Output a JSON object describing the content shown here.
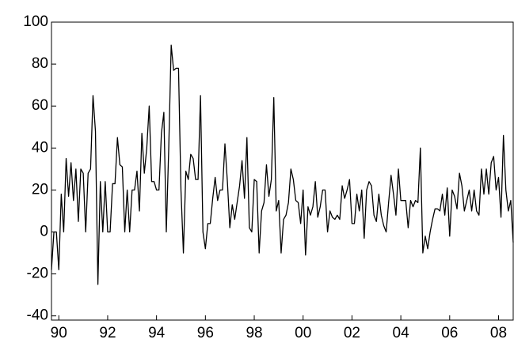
{
  "chart_data": {
    "type": "line",
    "x": [
      1989.7,
      1989.8,
      1989.9,
      1990.0,
      1990.1,
      1990.2,
      1990.3,
      1990.4,
      1990.5,
      1990.6,
      1990.7,
      1990.8,
      1990.9,
      1991.0,
      1991.1,
      1991.2,
      1991.3,
      1991.4,
      1991.5,
      1991.6,
      1991.7,
      1991.8,
      1991.9,
      1992.0,
      1992.1,
      1992.2,
      1992.3,
      1992.4,
      1992.5,
      1992.6,
      1992.7,
      1992.8,
      1992.9,
      1993.0,
      1993.1,
      1993.2,
      1993.3,
      1993.4,
      1993.5,
      1993.6,
      1993.7,
      1993.8,
      1993.9,
      1994.0,
      1994.1,
      1994.2,
      1994.3,
      1994.4,
      1994.5,
      1994.6,
      1994.7,
      1994.8,
      1994.9,
      1995.0,
      1995.1,
      1995.2,
      1995.3,
      1995.4,
      1995.5,
      1995.6,
      1995.7,
      1995.8,
      1995.9,
      1996.0,
      1996.1,
      1996.2,
      1996.3,
      1996.4,
      1996.5,
      1996.6,
      1996.7,
      1996.8,
      1996.9,
      1997.0,
      1997.1,
      1997.2,
      1997.3,
      1997.4,
      1997.5,
      1997.6,
      1997.7,
      1997.8,
      1997.9,
      1998.0,
      1998.1,
      1998.2,
      1998.3,
      1998.4,
      1998.5,
      1998.6,
      1998.7,
      1998.8,
      1998.9,
      1999.0,
      1999.1,
      1999.2,
      1999.3,
      1999.4,
      1999.5,
      1999.6,
      1999.7,
      1999.8,
      1999.9,
      2000.0,
      2000.1,
      2000.2,
      2000.3,
      2000.4,
      2000.5,
      2000.6,
      2000.7,
      2000.8,
      2000.9,
      2001.0,
      2001.1,
      2001.2,
      2001.3,
      2001.4,
      2001.5,
      2001.6,
      2001.7,
      2001.8,
      2001.9,
      2002.0,
      2002.1,
      2002.2,
      2002.3,
      2002.4,
      2002.5,
      2002.6,
      2002.7,
      2002.8,
      2002.9,
      2003.0,
      2003.1,
      2003.2,
      2003.3,
      2003.4,
      2003.5,
      2003.6,
      2003.7,
      2003.8,
      2003.9,
      2004.0,
      2004.1,
      2004.2,
      2004.3,
      2004.4,
      2004.5,
      2004.6,
      2004.7,
      2004.8,
      2004.9,
      2005.0,
      2005.1,
      2005.2,
      2005.3,
      2005.4,
      2005.5,
      2005.6,
      2005.7,
      2005.8,
      2005.9,
      2006.0,
      2006.1,
      2006.2,
      2006.3,
      2006.4,
      2006.5,
      2006.6,
      2006.7,
      2006.8,
      2006.9,
      2007.0,
      2007.1,
      2007.2,
      2007.3,
      2007.4,
      2007.5,
      2007.6,
      2007.7,
      2007.8,
      2007.9,
      2008.0,
      2008.1,
      2008.2,
      2008.3,
      2008.4,
      2008.5,
      2008.6
    ],
    "series": [
      {
        "color": "#000000",
        "values": [
          -18,
          0,
          0,
          -18,
          18,
          0,
          35,
          17,
          33,
          15,
          30,
          5,
          30,
          28,
          0,
          28,
          30,
          65,
          48,
          -25,
          24,
          0,
          24,
          0,
          0,
          23,
          23,
          45,
          32,
          31,
          0,
          20,
          0,
          20,
          20,
          29,
          10,
          47,
          28,
          40,
          60,
          24,
          24,
          20,
          20,
          47,
          57,
          0,
          40,
          89,
          77,
          78,
          78,
          20,
          -10,
          29,
          25,
          37,
          35,
          25,
          25,
          65,
          0,
          -8,
          4,
          4,
          16,
          26,
          15,
          20,
          20,
          42,
          24,
          2,
          13,
          6,
          14,
          22,
          34,
          16,
          45,
          2,
          0,
          25,
          24,
          -10,
          10,
          14,
          32,
          17,
          25,
          64,
          10,
          15,
          -10,
          6,
          8,
          14,
          30,
          25,
          15,
          14,
          4,
          20,
          -11,
          12,
          8,
          12,
          24,
          7,
          12,
          20,
          20,
          0,
          10,
          7,
          6,
          8,
          6,
          22,
          16,
          20,
          25,
          4,
          4,
          18,
          10,
          20,
          -3,
          20,
          24,
          22,
          8,
          5,
          18,
          8,
          3,
          0,
          14,
          27,
          18,
          8,
          30,
          15,
          15,
          15,
          2,
          15,
          12,
          15,
          14,
          40,
          -10,
          -2,
          -8,
          0,
          6,
          11,
          11,
          10,
          18,
          8,
          21,
          -2,
          20,
          17,
          11,
          28,
          22,
          10,
          15,
          20,
          10,
          20,
          10,
          8,
          30,
          18,
          30,
          18,
          33,
          36,
          20,
          26,
          7,
          46,
          20,
          10,
          15,
          -5
        ]
      }
    ],
    "xlim": [
      1989.7,
      2008.6
    ],
    "xticks": [
      {
        "value": 1990,
        "label": "90"
      },
      {
        "value": 1992,
        "label": "92"
      },
      {
        "value": 1994,
        "label": "94"
      },
      {
        "value": 1996,
        "label": "96"
      },
      {
        "value": 1998,
        "label": "98"
      },
      {
        "value": 2000,
        "label": "00"
      },
      {
        "value": 2002,
        "label": "02"
      },
      {
        "value": 2004,
        "label": "04"
      },
      {
        "value": 2006,
        "label": "06"
      },
      {
        "value": 2008,
        "label": "08"
      }
    ],
    "ylim": [
      -42,
      100
    ],
    "yticks": [
      -40,
      -20,
      0,
      20,
      40,
      60,
      80,
      100
    ],
    "grid": false
  }
}
